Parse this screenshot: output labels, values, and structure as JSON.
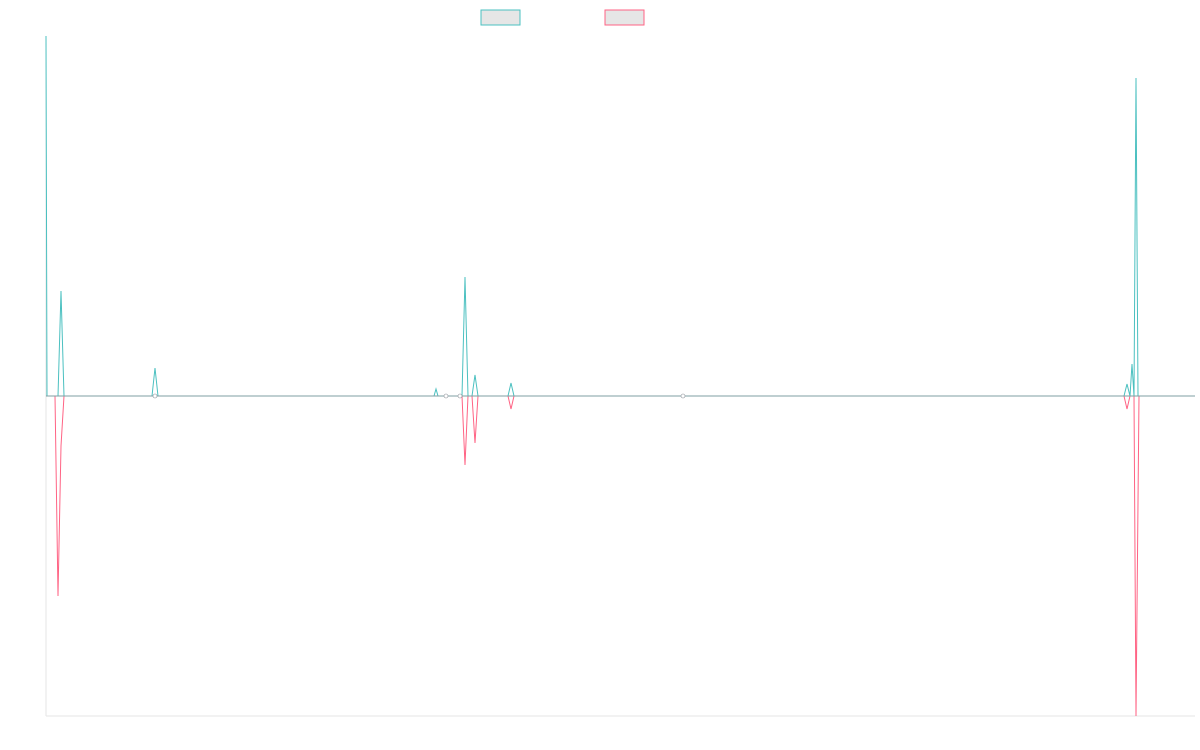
{
  "chart_data": {
    "type": "line",
    "title": "",
    "xlabel": "",
    "ylabel": "",
    "grid": false,
    "legend_placement": "top-center",
    "ylim": [
      -320,
      360
    ],
    "x_count": 1150,
    "series": [
      {
        "color": "#4bc0c0",
        "fill": "#e6e6e6",
        "points": [
          [
            0,
            360
          ],
          [
            1,
            0
          ],
          [
            12,
            0
          ],
          [
            15,
            105
          ],
          [
            18,
            0
          ],
          [
            106,
            0
          ],
          [
            109,
            28
          ],
          [
            112,
            0
          ],
          [
            388,
            0
          ],
          [
            390,
            7
          ],
          [
            392,
            0
          ],
          [
            416,
            0
          ],
          [
            419,
            119
          ],
          [
            422,
            0
          ],
          [
            426,
            0
          ],
          [
            429,
            21
          ],
          [
            432,
            0
          ],
          [
            462,
            0
          ],
          [
            465,
            13
          ],
          [
            468,
            0
          ],
          [
            1078,
            0
          ],
          [
            1081,
            12
          ],
          [
            1084,
            0
          ],
          [
            1086,
            32
          ],
          [
            1088,
            0
          ],
          [
            1090,
            318
          ],
          [
            1092,
            0
          ],
          [
            1149,
            0
          ]
        ]
      },
      {
        "color": "#ff6384",
        "fill": "#e6e6e6",
        "points": [
          [
            0,
            0
          ],
          [
            9,
            0
          ],
          [
            12,
            -200
          ],
          [
            15,
            -50
          ],
          [
            18,
            0
          ],
          [
            416,
            0
          ],
          [
            419,
            -69
          ],
          [
            422,
            0
          ],
          [
            426,
            0
          ],
          [
            429,
            -47
          ],
          [
            432,
            0
          ],
          [
            462,
            0
          ],
          [
            465,
            -13
          ],
          [
            468,
            0
          ],
          [
            1078,
            0
          ],
          [
            1081,
            -13
          ],
          [
            1084,
            0
          ],
          [
            1088,
            0
          ],
          [
            1090,
            -320
          ],
          [
            1093,
            0
          ],
          [
            1149,
            0
          ]
        ]
      }
    ],
    "markers": [
      109,
      400,
      414,
      637
    ]
  }
}
